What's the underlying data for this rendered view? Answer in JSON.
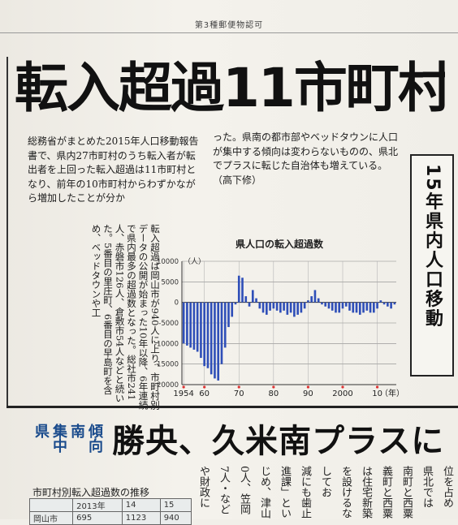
{
  "permit": "第3種郵便物認可",
  "headline": "転入超過11市町村",
  "side_title": "15年県内人口移動",
  "lead": "総務省がまとめた2015年人口移動報告書で、県内27市町村のうち転入者が転出者を上回った転入超過は11市町村となり、前年の10市町村からわずかながら増加したことが分か",
  "vertical_body": "り、市町村別データの公開が始まった10年以降、6年連続で県内最多の超過数となった。総社市241人、赤磐市126人、倉敷市54人などと続いた。5番目の里庄町、6番目の早島町を含め、ベッドタウンや工",
  "vertical_first": "転入超過は岡山市が940人に上",
  "para2": "った。県南の都市部やベッドタウンに人口が集中する傾向は変わらないものの、県北でプラスに転じた自治体も増えている。（高下修）",
  "sub_tags": [
    "県",
    "集中",
    "南",
    "傾向"
  ],
  "sub_tag_lines": [
    "県",
    "南",
    "集",
    "中",
    "傾",
    "向"
  ],
  "sub_headline": "勝央、久米南プラスに",
  "table": {
    "caption": "市町村別転入超過数の推移",
    "header": [
      "",
      "2013年",
      "14",
      "15"
    ],
    "row": [
      "岡山市",
      "695",
      "1123",
      "940"
    ]
  },
  "bottom_columns": [
    "位を占め",
    "県北では",
    "南町と西粟",
    "義町と西粟",
    "は住宅新築",
    "を設けるな",
    "してお",
    "減にも歯止",
    "進課」とい",
    "じめ、津山",
    "0人、笠岡",
    "7人・など",
    "や財政に"
  ],
  "chart_data": {
    "type": "bar",
    "title": "県人口の転入超過数",
    "ylabel": "（人）",
    "xlabel": "",
    "unit_suffix": "（年）",
    "ylim": [
      -20000,
      10000
    ],
    "yticks": [
      10000,
      5000,
      0,
      -5000,
      -10000,
      -15000,
      -20000
    ],
    "xtick_labels": [
      "1954",
      "60",
      "70",
      "80",
      "90",
      "2000",
      "10"
    ],
    "xtick_years": [
      1954,
      1960,
      1970,
      1980,
      1990,
      2000,
      2010
    ],
    "x": [
      1954,
      1955,
      1956,
      1957,
      1958,
      1959,
      1960,
      1961,
      1962,
      1963,
      1964,
      1965,
      1966,
      1967,
      1968,
      1969,
      1970,
      1971,
      1972,
      1973,
      1974,
      1975,
      1976,
      1977,
      1978,
      1979,
      1980,
      1981,
      1982,
      1983,
      1984,
      1985,
      1986,
      1987,
      1988,
      1989,
      1990,
      1991,
      1992,
      1993,
      1994,
      1995,
      1996,
      1997,
      1998,
      1999,
      2000,
      2001,
      2002,
      2003,
      2004,
      2005,
      2006,
      2007,
      2008,
      2009,
      2010,
      2011,
      2012,
      2013,
      2014,
      2015
    ],
    "values": [
      -10000,
      -10500,
      -11000,
      -11500,
      -12000,
      -13500,
      -15500,
      -16000,
      -17500,
      -18500,
      -19000,
      -15000,
      -11000,
      -6000,
      -3500,
      -500,
      6500,
      6000,
      1500,
      -1000,
      3000,
      1000,
      -1500,
      -2500,
      -3000,
      -2000,
      -1500,
      -2000,
      -2500,
      -2000,
      -3000,
      -2500,
      -3500,
      -3000,
      -2500,
      -1500,
      500,
      1500,
      3000,
      1000,
      -500,
      -1000,
      -1500,
      -2000,
      -2500,
      -2500,
      -1500,
      -1000,
      -2000,
      -2500,
      -2500,
      -3000,
      -2500,
      -2000,
      -2500,
      -2500,
      -1500,
      500,
      -500,
      -1000,
      -1500,
      -500
    ],
    "bar_color": "#2f4fb8",
    "grid": true
  }
}
